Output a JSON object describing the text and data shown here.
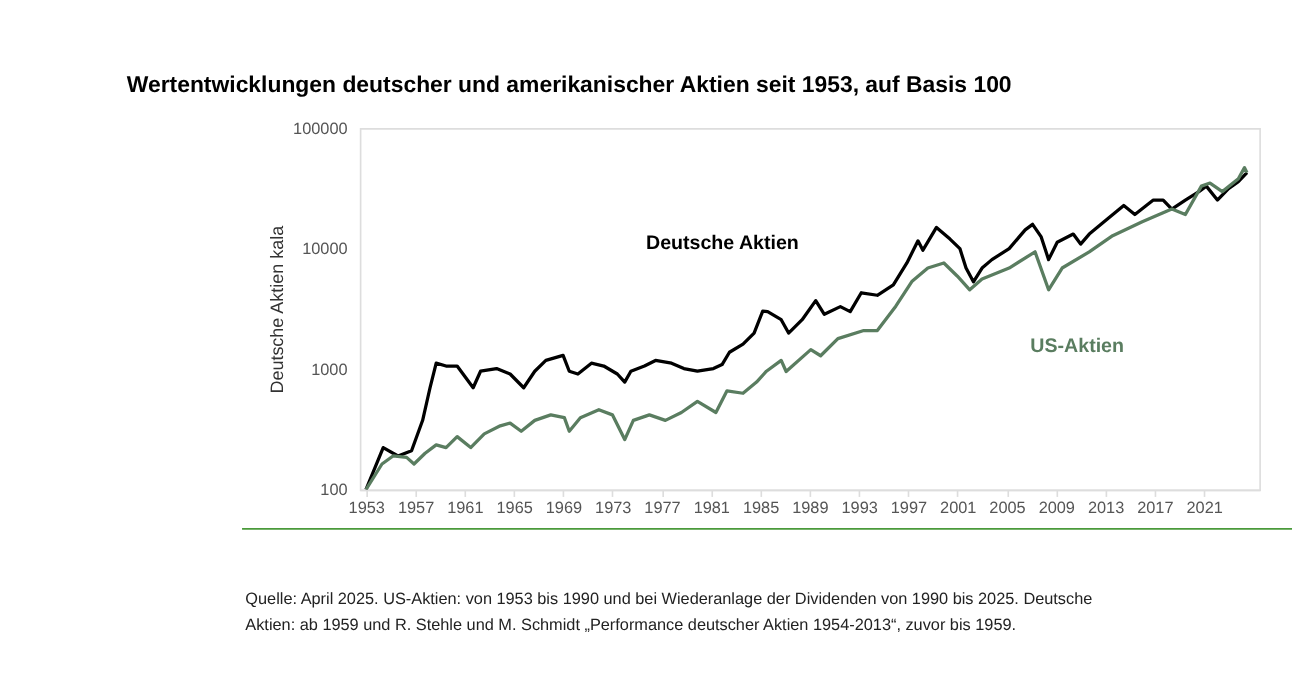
{
  "chart_data": {
    "type": "line",
    "title": "Wertentwicklungen deutscher und amerikanischer Aktien seit 1953, auf Basis 100",
    "ylabel": "Deutsche Aktien kala",
    "log": true,
    "legend": false,
    "grid": false,
    "marker": "none",
    "line_style": "solid",
    "xlim": [
      1952.5,
      2025.5
    ],
    "xticks": [
      1953,
      1957,
      1961,
      1965,
      1969,
      1973,
      1977,
      1981,
      1985,
      1989,
      1993,
      1997,
      2001,
      2005,
      2009,
      2013,
      2017,
      2021
    ],
    "ylim": [
      100,
      100000
    ],
    "yticks": [
      100,
      1000,
      10000,
      100000
    ],
    "series": [
      {
        "name": "Deutsche Aktien",
        "color": "#000000",
        "x": [
          1953,
          1954.4,
          1955.6,
          1956.7,
          1957.6,
          1958.2,
          1958.7,
          1959.5,
          1960.4,
          1961.7,
          1962.3,
          1963.6,
          1964.7,
          1965.8,
          1966.7,
          1967.6,
          1969,
          1969.5,
          1970.2,
          1971.3,
          1972.3,
          1973.4,
          1974,
          1974.5,
          1975.6,
          1976.5,
          1977.8,
          1978.8,
          1979.9,
          1981.2,
          1981.9,
          1982.5,
          1983.6,
          1984.5,
          1985.2,
          1985.6,
          1986.7,
          1987.3,
          1988.4,
          1989.5,
          1990.2,
          1991.5,
          1992.3,
          1993.2,
          1994.5,
          1995.8,
          1996.9,
          1997.8,
          1998.2,
          1999.3,
          2000.4,
          2001.2,
          2001.7,
          2002.3,
          2003,
          2003.8,
          2005.2,
          2006.5,
          2007.1,
          2007.8,
          2008.4,
          2009.1,
          2010.4,
          2011,
          2011.7,
          2012.9,
          2014.5,
          2015.4,
          2016.9,
          2017.7,
          2018.4,
          2019.5,
          2020.6,
          2021.2,
          2022.1,
          2023,
          2023.8,
          2024.5
        ],
        "values": [
          100,
          223,
          190,
          210,
          376,
          700,
          1120,
          1060,
          1060,
          700,
          960,
          1010,
          910,
          700,
          960,
          1180,
          1300,
          960,
          910,
          1120,
          1060,
          910,
          780,
          960,
          1060,
          1180,
          1120,
          1010,
          960,
          1010,
          1090,
          1380,
          1610,
          1990,
          3030,
          3000,
          2570,
          1990,
          2570,
          3700,
          2850,
          3300,
          3000,
          4300,
          4100,
          5000,
          7600,
          11600,
          9700,
          15000,
          12000,
          10000,
          6900,
          5300,
          6900,
          8100,
          10000,
          14300,
          15900,
          12500,
          8100,
          11300,
          13200,
          10900,
          13200,
          16700,
          22800,
          19200,
          25300,
          25300,
          21300,
          25300,
          29700,
          33000,
          25300,
          31500,
          36000,
          42700
        ]
      },
      {
        "name": "US-Aktien",
        "color": "#5a7d60",
        "x": [
          1953,
          1954.3,
          1955.2,
          1956.3,
          1956.9,
          1957.8,
          1958.7,
          1959.5,
          1960.4,
          1961.5,
          1962.6,
          1963.9,
          1964.7,
          1965.6,
          1966.7,
          1968,
          1969.1,
          1969.5,
          1970.4,
          1971.9,
          1973,
          1974,
          1974.7,
          1976,
          1977.3,
          1978.6,
          1979.9,
          1981.4,
          1982.3,
          1983.6,
          1984.7,
          1985.5,
          1986.7,
          1987.1,
          1989.1,
          1989.9,
          1991.3,
          1993.4,
          1994.5,
          1996,
          1997.3,
          1998.6,
          1999.9,
          2001,
          2002,
          2003,
          2005.2,
          2007.3,
          2008.4,
          2009.5,
          2011.7,
          2013.6,
          2016,
          2018.4,
          2019.5,
          2020.8,
          2021.5,
          2022.5,
          2023.8,
          2024.3,
          2024.5
        ],
        "values": [
          100,
          163,
          190,
          185,
          163,
          200,
          235,
          223,
          275,
          223,
          290,
          338,
          356,
          305,
          375,
          417,
          395,
          305,
          395,
          460,
          417,
          260,
          375,
          417,
          375,
          436,
          540,
          436,
          660,
          630,
          780,
          960,
          1180,
          955,
          1450,
          1290,
          1790,
          2090,
          2090,
          3330,
          5330,
          6900,
          7600,
          5900,
          4550,
          5600,
          6900,
          9400,
          4550,
          6900,
          9400,
          12800,
          16700,
          21300,
          19200,
          33000,
          35000,
          29700,
          38000,
          47000,
          42700
        ]
      }
    ],
    "annotations": [
      "Quelle: April 2025. US-Aktien: von 1953 bis 1990 und bei Wiederanlage der Dividenden von 1990 bis 2025. Deutsche Aktien: ab 1959 und R. Stehle und M. Schmidt „Performance deutscher Aktien 1954-2013“, zuvor bis 1959."
    ]
  }
}
